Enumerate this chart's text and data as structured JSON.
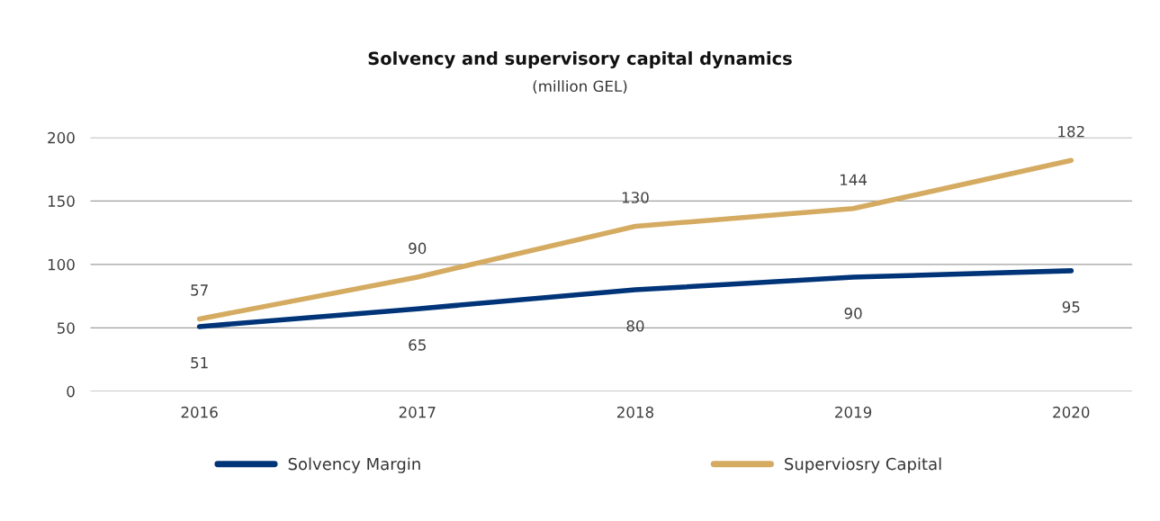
{
  "chart_data": {
    "type": "line",
    "title": "Solvency and supervisory capital dynamics",
    "subtitle": "(million GEL)",
    "categories": [
      "2016",
      "2017",
      "2018",
      "2019",
      "2020"
    ],
    "series": [
      {
        "name": "Solvency Margin",
        "color": "#003478",
        "values": [
          51,
          65,
          80,
          90,
          95
        ]
      },
      {
        "name": "Superviosry Capital",
        "color": "#d4ab61",
        "values": [
          57,
          90,
          130,
          144,
          182
        ]
      }
    ],
    "ylim": [
      0,
      200
    ],
    "yticks": [
      0,
      50,
      100,
      150,
      200
    ],
    "grid": "y",
    "legend": "bottom",
    "data_labels": true,
    "marker": "none",
    "line_style": "solid"
  }
}
